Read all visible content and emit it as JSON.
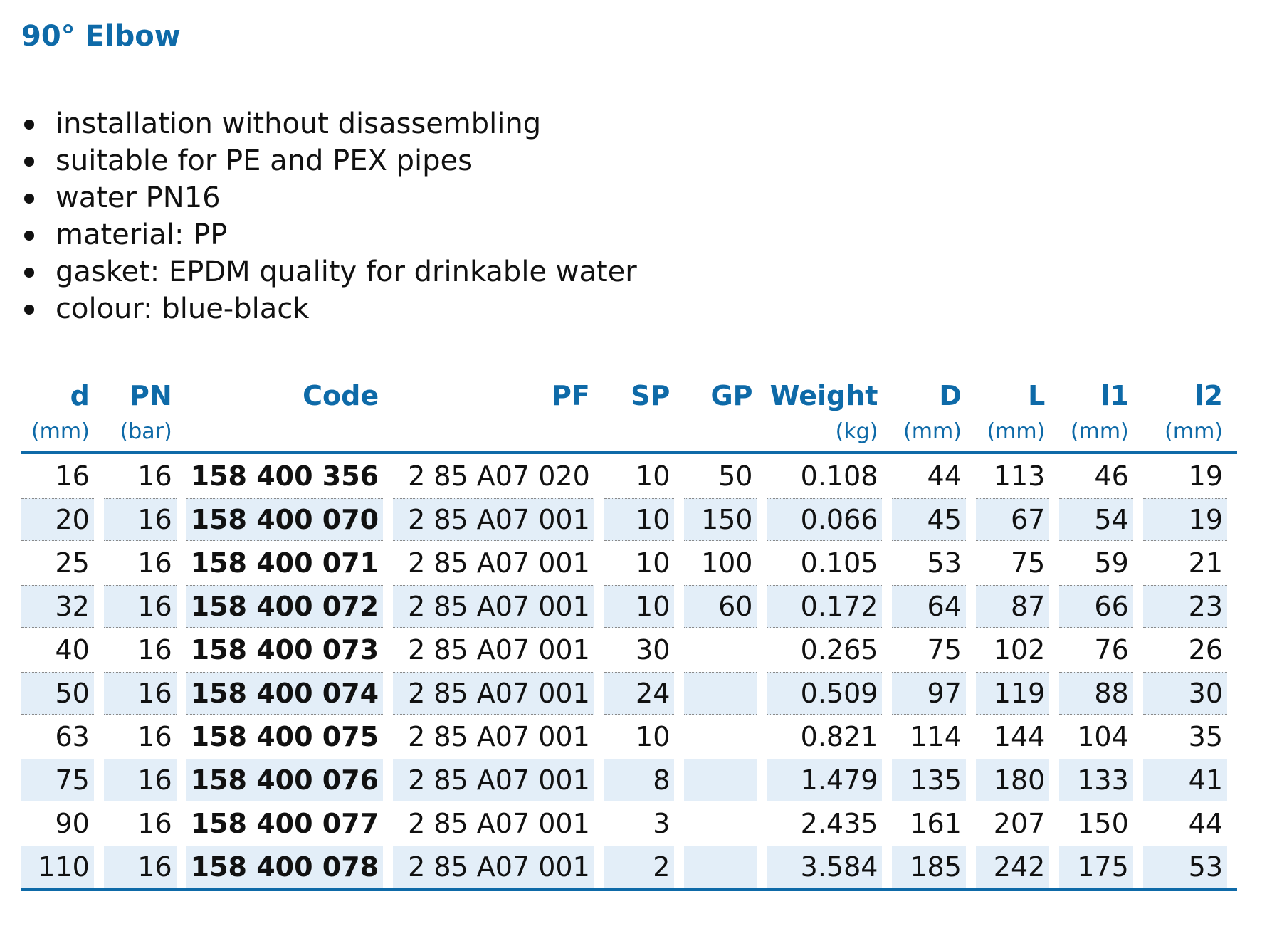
{
  "title": "90° Elbow",
  "features": [
    "installation without disassembling",
    "suitable for PE and PEX pipes",
    "water PN16",
    "material: PP",
    "gasket: EPDM quality for drinkable water",
    "colour: blue-black"
  ],
  "table": {
    "columns": [
      {
        "name": "d",
        "unit": "(mm)"
      },
      {
        "name": "PN",
        "unit": "(bar)"
      },
      {
        "name": "Code",
        "unit": ""
      },
      {
        "name": "PF",
        "unit": ""
      },
      {
        "name": "SP",
        "unit": ""
      },
      {
        "name": "GP",
        "unit": ""
      },
      {
        "name": "Weight",
        "unit": "(kg)"
      },
      {
        "name": "D",
        "unit": "(mm)"
      },
      {
        "name": "L",
        "unit": "(mm)"
      },
      {
        "name": "l1",
        "unit": "(mm)"
      },
      {
        "name": "l2",
        "unit": "(mm)"
      }
    ],
    "rows": [
      [
        "16",
        "16",
        "158 400 356",
        "2 85 A07 020",
        "10",
        "50",
        "0.108",
        "44",
        "113",
        "46",
        "19"
      ],
      [
        "20",
        "16",
        "158 400 070",
        "2 85 A07 001",
        "10",
        "150",
        "0.066",
        "45",
        "67",
        "54",
        "19"
      ],
      [
        "25",
        "16",
        "158 400 071",
        "2 85 A07 001",
        "10",
        "100",
        "0.105",
        "53",
        "75",
        "59",
        "21"
      ],
      [
        "32",
        "16",
        "158 400 072",
        "2 85 A07 001",
        "10",
        "60",
        "0.172",
        "64",
        "87",
        "66",
        "23"
      ],
      [
        "40",
        "16",
        "158 400 073",
        "2 85 A07 001",
        "30",
        "",
        "0.265",
        "75",
        "102",
        "76",
        "26"
      ],
      [
        "50",
        "16",
        "158 400 074",
        "2 85 A07 001",
        "24",
        "",
        "0.509",
        "97",
        "119",
        "88",
        "30"
      ],
      [
        "63",
        "16",
        "158 400 075",
        "2 85 A07 001",
        "10",
        "",
        "0.821",
        "114",
        "144",
        "104",
        "35"
      ],
      [
        "75",
        "16",
        "158 400 076",
        "2 85 A07 001",
        "8",
        "",
        "1.479",
        "135",
        "180",
        "133",
        "41"
      ],
      [
        "90",
        "16",
        "158 400 077",
        "2 85 A07 001",
        "3",
        "",
        "2.435",
        "161",
        "207",
        "150",
        "44"
      ],
      [
        "110",
        "16",
        "158 400 078",
        "2 85 A07 001",
        "2",
        "",
        "3.584",
        "185",
        "242",
        "175",
        "53"
      ]
    ]
  },
  "colors": {
    "accent": "#0e6aa8",
    "row_shade": "#e3eef8",
    "text": "#111111"
  }
}
